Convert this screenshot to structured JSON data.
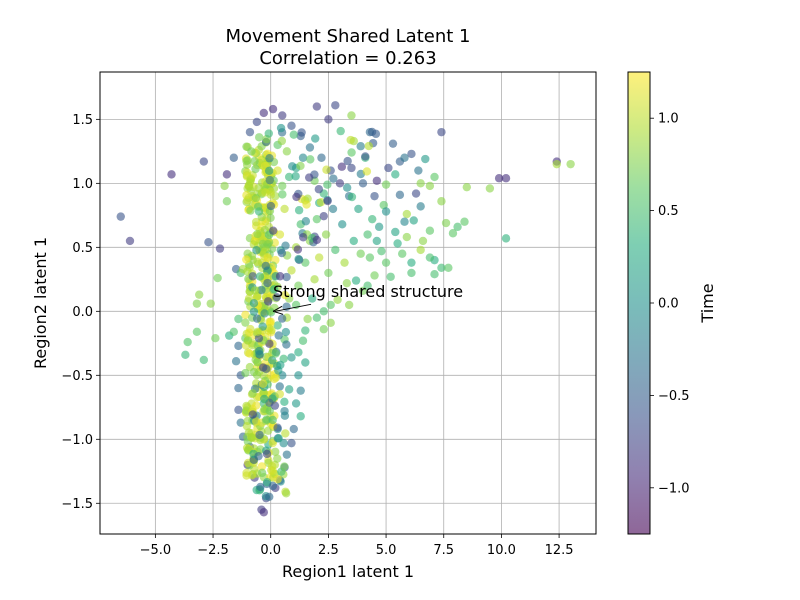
{
  "chart_data": {
    "type": "scatter",
    "title_line1": "Movement Shared Latent 1",
    "title_line2": "Correlation = 0.263",
    "xlabel": "Region1 latent 1",
    "ylabel": "Region2 latent 1",
    "xlim": [
      -7.4,
      14.1
    ],
    "ylim": [
      -1.74,
      1.87
    ],
    "xticks": [
      -5.0,
      -2.5,
      0.0,
      2.5,
      5.0,
      7.5,
      10.0,
      12.5
    ],
    "xtick_labels": [
      "−5.0",
      "−2.5",
      "0.0",
      "2.5",
      "5.0",
      "7.5",
      "10.0",
      "12.5"
    ],
    "yticks": [
      -1.5,
      -1.0,
      -0.5,
      0.0,
      0.5,
      1.0,
      1.5
    ],
    "ytick_labels": [
      "−1.5",
      "−1.0",
      "−0.5",
      "0.0",
      "0.5",
      "1.0",
      "1.5"
    ],
    "grid": true,
    "colormap": "viridis",
    "point_alpha": 0.6,
    "colorbar": {
      "label": "Time",
      "range": [
        -1.25,
        1.25
      ],
      "ticks": [
        -1.0,
        -0.5,
        0.0,
        0.5,
        1.0
      ],
      "tick_labels": [
        "−1.0",
        "−0.5",
        "0.0",
        "0.5",
        "1.0"
      ]
    },
    "annotation": {
      "text": "Strong shared structure",
      "text_at": [
        0.1,
        0.11
      ],
      "arrow_to": [
        0.1,
        0.0
      ]
    },
    "points": [
      [
        -6.5,
        0.74,
        -0.6
      ],
      [
        -6.1,
        0.55,
        -0.8
      ],
      [
        -4.3,
        1.07,
        -0.9
      ],
      [
        -2.9,
        1.17,
        -0.7
      ],
      [
        -2.7,
        0.54,
        -0.6
      ],
      [
        -2.2,
        0.49,
        -0.8
      ],
      [
        -1.9,
        1.07,
        -0.9
      ],
      [
        -1.6,
        1.2,
        -0.5
      ],
      [
        -1.5,
        0.33,
        -0.5
      ],
      [
        -1.3,
        0.3,
        0.5
      ],
      [
        -2.3,
        0.26,
        0.7
      ],
      [
        -3.1,
        0.13,
        0.8
      ],
      [
        -3.2,
        0.06,
        0.75
      ],
      [
        -2.6,
        0.06,
        0.8
      ],
      [
        -3.2,
        -0.16,
        0.6
      ],
      [
        -3.6,
        -0.24,
        0.55
      ],
      [
        -3.7,
        -0.34,
        0.4
      ],
      [
        -2.9,
        -0.38,
        0.45
      ],
      [
        -2.4,
        -0.21,
        0.7
      ],
      [
        -1.8,
        -0.19,
        0.3
      ],
      [
        -1.6,
        -0.16,
        0.55
      ],
      [
        -1.4,
        -0.06,
        0.5
      ],
      [
        -1.9,
        0.86,
        0.7
      ],
      [
        -2.0,
        0.98,
        0.8
      ],
      [
        -1.0,
        0.96,
        0.9
      ],
      [
        12.4,
        1.17,
        -0.9
      ],
      [
        12.4,
        1.15,
        0.9
      ],
      [
        13.0,
        1.15,
        0.8
      ],
      [
        10.2,
        1.04,
        -0.9
      ],
      [
        9.9,
        1.04,
        -0.9
      ],
      [
        9.5,
        0.96,
        0.8
      ],
      [
        8.5,
        0.97,
        0.8
      ],
      [
        10.2,
        0.57,
        0.35
      ],
      [
        7.4,
        1.4,
        -0.7
      ],
      [
        7.4,
        0.86,
        0.8
      ],
      [
        7.6,
        0.69,
        0.75
      ],
      [
        8.1,
        0.66,
        0.5
      ],
      [
        8.4,
        0.7,
        0.6
      ],
      [
        7.9,
        0.61,
        0.6
      ],
      [
        6.9,
        0.63,
        0.6
      ],
      [
        6.6,
        0.55,
        0.8
      ],
      [
        5.9,
        0.58,
        0.8
      ],
      [
        6.5,
        0.48,
        0.9
      ],
      [
        6.1,
        0.3,
        0.5
      ],
      [
        7.1,
        0.4,
        0.3
      ],
      [
        7.4,
        0.34,
        0.45
      ],
      [
        7.7,
        0.34,
        0.6
      ],
      [
        7.1,
        0.29,
        0.5
      ],
      [
        6.9,
        0.42,
        0.5
      ],
      [
        5.5,
        0.53,
        0.3
      ],
      [
        5.9,
        0.76,
        0.9
      ],
      [
        6.5,
        1.0,
        0.8
      ],
      [
        7.1,
        1.05,
        0.6
      ],
      [
        6.9,
        0.98,
        0.8
      ],
      [
        6.7,
        1.19,
        0.1
      ],
      [
        6.4,
        1.1,
        -0.3
      ],
      [
        6.1,
        1.23,
        -0.6
      ],
      [
        5.6,
        1.17,
        -0.5
      ],
      [
        5.1,
        1.12,
        -0.7
      ],
      [
        4.3,
        1.4,
        -0.4
      ],
      [
        3.6,
        1.33,
        0.9
      ],
      [
        4.1,
        1.2,
        0.4
      ],
      [
        2.8,
        1.61,
        -0.7
      ],
      [
        2.0,
        1.6,
        -0.8
      ],
      [
        2.5,
        1.5,
        -0.8
      ],
      [
        3.5,
        1.53,
        0.8
      ],
      [
        4.1,
        1.21,
        -0.6
      ],
      [
        3.9,
        1.29,
        -0.2
      ],
      [
        5.3,
        1.31,
        -0.5
      ],
      [
        5.8,
        1.2,
        -0.3
      ],
      [
        5.4,
        1.07,
        0.3
      ],
      [
        5.6,
        0.91,
        -0.4
      ],
      [
        6.3,
        0.92,
        -0.7
      ],
      [
        6.5,
        0.82,
        -0.2
      ],
      [
        5.8,
        0.7,
        -0.1
      ],
      [
        6.2,
        0.71,
        0.2
      ],
      [
        5.0,
        0.99,
        0.7
      ],
      [
        4.6,
        1.02,
        -0.9
      ],
      [
        4.9,
        0.83,
        0.6
      ],
      [
        4.4,
        0.72,
        0.4
      ],
      [
        4.7,
        0.66,
        0.1
      ],
      [
        4.8,
        0.47,
        0.5
      ],
      [
        4.3,
        0.42,
        0.6
      ],
      [
        5.0,
        0.38,
        0.6
      ],
      [
        5.2,
        0.27,
        0.5
      ],
      [
        4.5,
        0.28,
        0.7
      ],
      [
        4.0,
        0.16,
        0.7
      ],
      [
        3.7,
        0.24,
        0.3
      ],
      [
        3.3,
        0.22,
        0.8
      ],
      [
        2.9,
        0.09,
        0.85
      ],
      [
        2.6,
        0.05,
        0.6
      ],
      [
        2.3,
        0.0,
        0.5
      ],
      [
        2.6,
        -0.09,
        0.8
      ],
      [
        1.6,
        -0.06,
        0.8
      ],
      [
        2.3,
        -0.14,
        0.7
      ],
      [
        1.5,
        -0.15,
        0.4
      ],
      [
        1.4,
        -0.23,
        0.5
      ],
      [
        1.2,
        -0.32,
        0.3
      ],
      [
        1.5,
        -0.4,
        0.2
      ],
      [
        1.2,
        -0.5,
        0.0
      ],
      [
        1.3,
        -0.62,
        -0.2
      ],
      [
        1.1,
        -0.72,
        0.1
      ],
      [
        1.3,
        -0.82,
        0.3
      ],
      [
        1.0,
        -0.92,
        -0.4
      ],
      [
        0.9,
        -1.03,
        -0.6
      ],
      [
        0.7,
        -1.12,
        -0.3
      ],
      [
        0.6,
        -1.22,
        -0.5
      ],
      [
        0.4,
        -1.32,
        -0.7
      ],
      [
        0.2,
        -1.38,
        -0.8
      ],
      [
        -0.2,
        -1.46,
        -0.7
      ],
      [
        -0.4,
        -1.55,
        -0.8
      ],
      [
        -0.3,
        -1.57,
        -0.9
      ],
      [
        -0.7,
        -1.3,
        -0.8
      ],
      [
        -1.0,
        -1.2,
        -0.9
      ],
      [
        -0.9,
        -1.06,
        -0.6
      ],
      [
        -1.2,
        -0.98,
        -0.4
      ],
      [
        -1.3,
        -0.87,
        -0.3
      ],
      [
        -1.4,
        -0.77,
        -0.6
      ],
      [
        -1.4,
        -0.6,
        -0.4
      ],
      [
        -1.3,
        -0.5,
        -0.5
      ],
      [
        -1.5,
        -0.39,
        -0.3
      ],
      [
        -1.4,
        -0.27,
        -0.4
      ],
      [
        -1.1,
        -0.21,
        0.6
      ],
      [
        -0.8,
        -0.25,
        1.0
      ],
      [
        -0.5,
        -0.35,
        1.1
      ],
      [
        -0.2,
        -0.45,
        1.2
      ],
      [
        -0.6,
        -0.6,
        1.0
      ],
      [
        -0.3,
        -0.72,
        0.4
      ],
      [
        -0.7,
        -0.82,
        1.1
      ],
      [
        -0.4,
        -0.94,
        0.9
      ],
      [
        -0.1,
        -1.04,
        0.3
      ],
      [
        0.3,
        -0.92,
        0.0
      ],
      [
        0.6,
        -0.78,
        -0.2
      ],
      [
        0.8,
        -0.61,
        0.2
      ],
      [
        0.5,
        -0.5,
        -0.1
      ],
      [
        0.9,
        -0.36,
        0.1
      ],
      [
        0.6,
        -0.22,
        0.6
      ],
      [
        0.3,
        -0.11,
        0.4
      ],
      [
        0.0,
        -0.08,
        1.2
      ],
      [
        -0.3,
        0.02,
        1.2
      ],
      [
        -0.6,
        0.1,
        1.1
      ],
      [
        -0.9,
        0.2,
        1.2
      ],
      [
        -1.2,
        0.33,
        0.9
      ],
      [
        -1.0,
        0.45,
        0.8
      ],
      [
        -0.7,
        0.55,
        1.2
      ],
      [
        -0.4,
        0.66,
        1.2
      ],
      [
        -0.1,
        0.78,
        1.1
      ],
      [
        0.2,
        0.9,
        0.9
      ],
      [
        0.5,
        0.98,
        0.7
      ],
      [
        0.8,
        1.05,
        0.4
      ],
      [
        1.1,
        1.12,
        0.2
      ],
      [
        1.4,
        1.2,
        -0.1
      ],
      [
        1.7,
        1.28,
        -0.3
      ],
      [
        1.3,
        1.37,
        -0.5
      ],
      [
        0.9,
        1.45,
        -0.6
      ],
      [
        0.5,
        1.53,
        -0.8
      ],
      [
        0.1,
        1.58,
        -0.9
      ],
      [
        -0.3,
        1.55,
        -0.9
      ],
      [
        -0.6,
        1.48,
        -0.7
      ],
      [
        -0.9,
        1.4,
        -0.6
      ],
      [
        -0.5,
        1.36,
        0.7
      ],
      [
        -0.2,
        1.32,
        0.9
      ],
      [
        0.3,
        1.3,
        0.6
      ],
      [
        0.7,
        1.25,
        0.8
      ],
      [
        1.0,
        1.38,
        0.5
      ],
      [
        2.2,
        1.2,
        -0.4
      ],
      [
        2.6,
        1.1,
        -0.6
      ],
      [
        3.0,
        1.0,
        -0.8
      ],
      [
        3.4,
        0.9,
        -0.3
      ],
      [
        3.8,
        0.8,
        0.2
      ],
      [
        4.2,
        0.6,
        0.5
      ],
      [
        3.6,
        0.55,
        0.3
      ],
      [
        3.1,
        0.68,
        0.0
      ],
      [
        2.7,
        0.8,
        -0.2
      ],
      [
        2.3,
        0.92,
        0.4
      ],
      [
        1.9,
        1.02,
        0.7
      ],
      [
        1.6,
        0.88,
        0.9
      ],
      [
        2.0,
        0.72,
        0.6
      ],
      [
        2.4,
        0.6,
        0.8
      ],
      [
        2.8,
        0.48,
        0.5
      ],
      [
        3.2,
        0.38,
        0.9
      ],
      [
        2.5,
        0.3,
        0.7
      ],
      [
        2.1,
        0.42,
        1.0
      ],
      [
        1.7,
        0.55,
        0.8
      ],
      [
        1.3,
        0.68,
        0.5
      ],
      [
        1.1,
        0.5,
        0.9
      ],
      [
        1.5,
        0.38,
        0.6
      ],
      [
        1.9,
        0.25,
        0.9
      ],
      [
        1.2,
        0.2,
        0.7
      ],
      [
        0.9,
        0.32,
        1.0
      ],
      [
        0.8,
        0.1,
        0.8
      ],
      [
        1.1,
        0.05,
        0.6
      ],
      [
        0.7,
        -0.05,
        0.9
      ],
      [
        3.5,
        1.12,
        -0.7
      ],
      [
        4.0,
        1.0,
        -0.5
      ],
      [
        4.5,
        0.9,
        -0.6
      ],
      [
        5.0,
        0.78,
        0.0
      ],
      [
        5.4,
        0.62,
        0.2
      ],
      [
        5.7,
        0.45,
        0.6
      ],
      [
        6.1,
        0.38,
        0.3
      ],
      [
        4.6,
        0.55,
        0.2
      ],
      [
        3.9,
        0.45,
        0.7
      ],
      [
        3.4,
        0.05,
        0.8
      ],
      [
        4.2,
        0.2,
        0.5
      ],
      [
        2.0,
        -0.05,
        0.5
      ],
      [
        1.8,
        0.1,
        0.3
      ],
      [
        0.4,
        0.6,
        1.1
      ],
      [
        0.2,
        0.4,
        1.2
      ],
      [
        0.0,
        0.2,
        1.2
      ],
      [
        -0.2,
        0.0,
        1.2
      ],
      [
        -0.4,
        -0.2,
        1.2
      ],
      [
        0.1,
        -0.3,
        1.1
      ],
      [
        -0.1,
        1.0,
        1.0
      ],
      [
        0.3,
        1.1,
        1.1
      ],
      [
        0.6,
        0.8,
        1.0
      ],
      [
        -0.5,
        1.2,
        1.2
      ],
      [
        -0.8,
        0.9,
        1.1
      ]
    ]
  }
}
